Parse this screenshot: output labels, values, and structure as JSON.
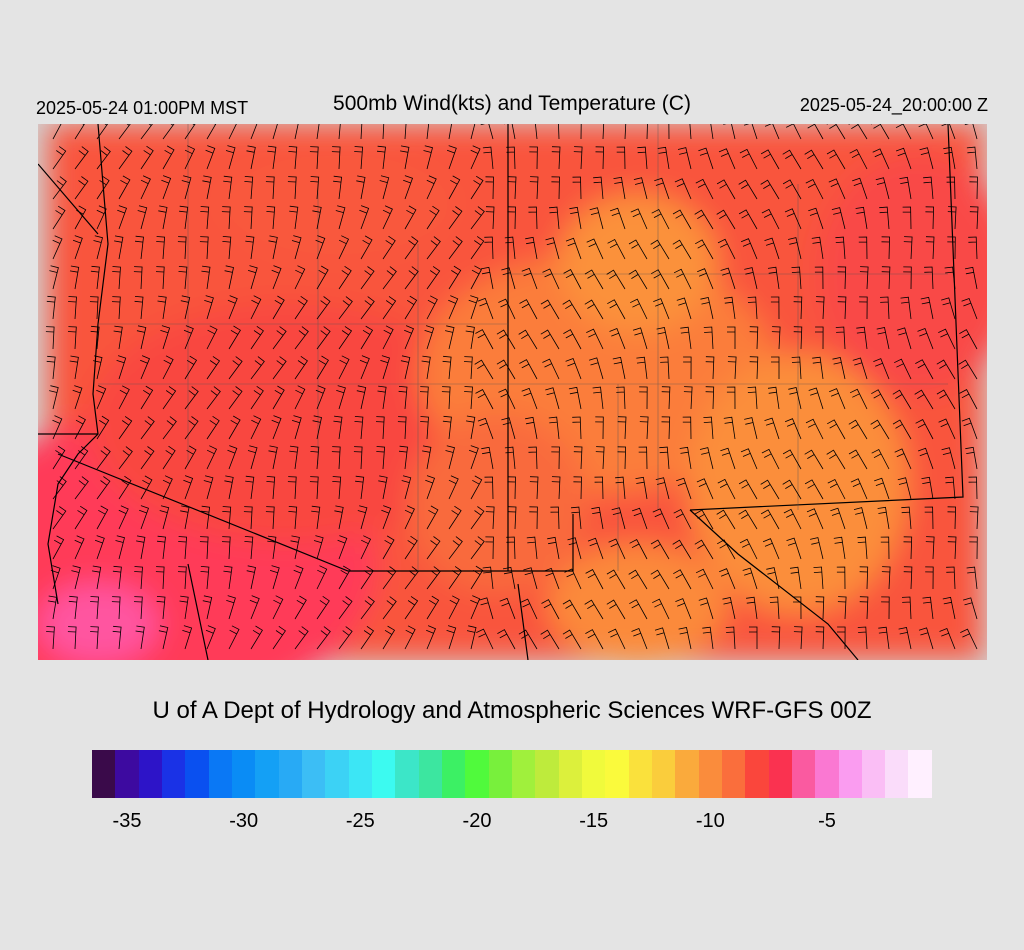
{
  "header": {
    "local_time": "2025-05-24 01:00PM MST",
    "title": "500mb Wind(kts) and Temperature (C)",
    "valid_time": "2025-05-24_20:00:00 Z"
  },
  "credit": "U of A Dept of Hydrology and Atmospheric Sciences WRF-GFS 00Z",
  "colorbar": {
    "colors": [
      "#3a0a4a",
      "#3d0aa0",
      "#2d14c8",
      "#1a32e6",
      "#0a50f0",
      "#0a78f5",
      "#0a8cf5",
      "#14a0f5",
      "#28aaf5",
      "#3cbef5",
      "#3cd2f5",
      "#3ce6f5",
      "#3cfaf0",
      "#3ce6c8",
      "#3ce6a0",
      "#3cf064",
      "#50fa3c",
      "#78f03c",
      "#a0f03c",
      "#beeb3c",
      "#dcf03c",
      "#f0fa3c",
      "#fafa3c",
      "#fae13c",
      "#facd3c",
      "#faaa3c",
      "#fa8c3c",
      "#fa6e3c",
      "#fa463c",
      "#fa3250",
      "#fa5aa0",
      "#fa78d2",
      "#fa9cf0",
      "#fabef5",
      "#fadcfa",
      "#fff0ff"
    ],
    "tick_labels": [
      "-35",
      "-30",
      "-25",
      "-20",
      "-15",
      "-10",
      "-5"
    ],
    "tick_values": [
      -35,
      -30,
      -25,
      -20,
      -15,
      -10,
      -5
    ],
    "min": -36,
    "max": -1
  },
  "map": {
    "description_colors": {
      "warm_south": "#ff3a55",
      "mid": "#fa5a3c",
      "plateau": "#fa823c",
      "cool_core": "#fa963c",
      "hot_edge": "#ff50a0",
      "background": "#d2d2d2"
    }
  }
}
